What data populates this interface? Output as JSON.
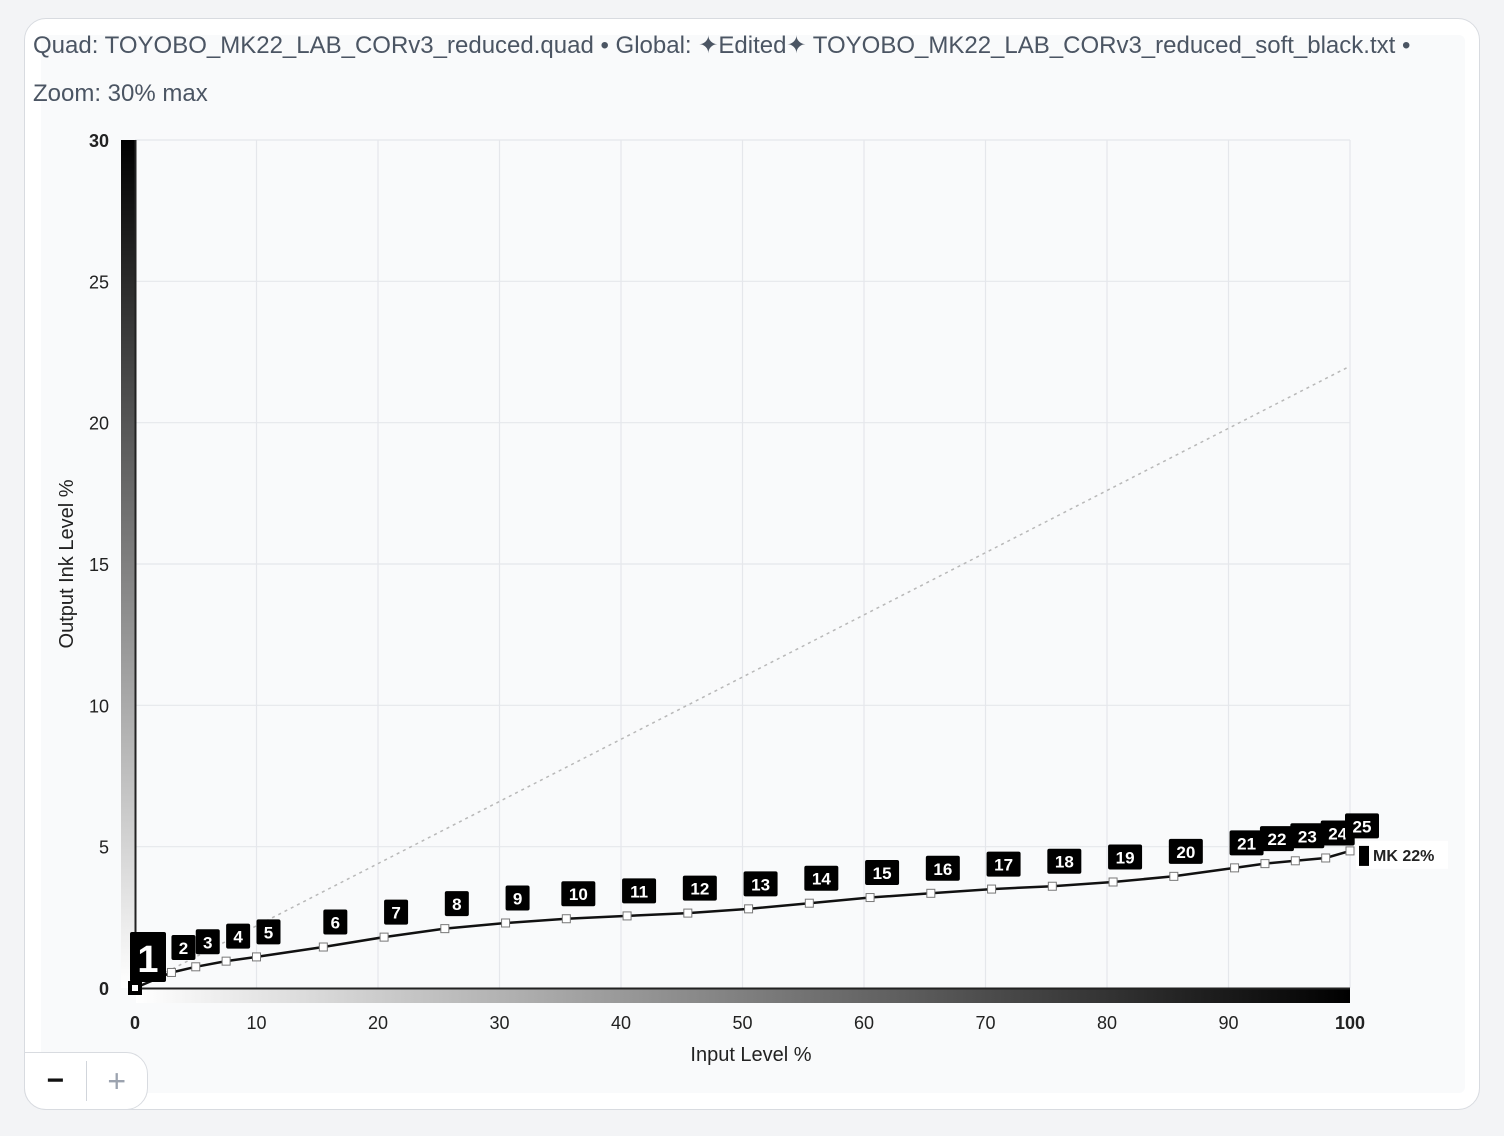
{
  "header": {
    "quad_label": "Quad:",
    "quad_file": "TOYOBO_MK22_LAB_CORv3_reduced.quad",
    "separator": "•",
    "global_label": "Global:",
    "global_file": "✦Edited✦ TOYOBO_MK22_LAB_CORv3_reduced_soft_black.txt",
    "zoom_text": "Zoom: 30% max"
  },
  "zoom_controls": {
    "minus": "−",
    "plus": "+"
  },
  "colors": {
    "curve": "#111111",
    "grid": "#e5e7eb",
    "reference_line": "#b8b8b8",
    "label_bg": "#000000",
    "label_text": "#ffffff",
    "axis": "#222222"
  },
  "chart_data": {
    "type": "line",
    "xlabel": "Input Level %",
    "ylabel": "Output Ink Level %",
    "xlim": [
      0,
      100
    ],
    "ylim": [
      0,
      30
    ],
    "xticks": [
      0,
      10,
      20,
      30,
      40,
      50,
      60,
      70,
      80,
      90,
      100
    ],
    "yticks": [
      0,
      5,
      10,
      15,
      20,
      25,
      30
    ],
    "grid": true,
    "reference_line": {
      "x": [
        0,
        100
      ],
      "y": [
        0,
        22
      ]
    },
    "series": [
      {
        "name": "MK 22%",
        "points": [
          {
            "id": "1",
            "x": 0,
            "y": 0
          },
          {
            "id": "2",
            "x": 3,
            "y": 0.55
          },
          {
            "id": "3",
            "x": 5,
            "y": 0.75
          },
          {
            "id": "4",
            "x": 7.5,
            "y": 0.95
          },
          {
            "id": "5",
            "x": 10,
            "y": 1.1
          },
          {
            "id": "6",
            "x": 15.5,
            "y": 1.45
          },
          {
            "id": "7",
            "x": 20.5,
            "y": 1.8
          },
          {
            "id": "8",
            "x": 25.5,
            "y": 2.1
          },
          {
            "id": "9",
            "x": 30.5,
            "y": 2.3
          },
          {
            "id": "10",
            "x": 35.5,
            "y": 2.45
          },
          {
            "id": "11",
            "x": 40.5,
            "y": 2.55
          },
          {
            "id": "12",
            "x": 45.5,
            "y": 2.65
          },
          {
            "id": "13",
            "x": 50.5,
            "y": 2.8
          },
          {
            "id": "14",
            "x": 55.5,
            "y": 3.0
          },
          {
            "id": "15",
            "x": 60.5,
            "y": 3.2
          },
          {
            "id": "16",
            "x": 65.5,
            "y": 3.35
          },
          {
            "id": "17",
            "x": 70.5,
            "y": 3.5
          },
          {
            "id": "18",
            "x": 75.5,
            "y": 3.6
          },
          {
            "id": "19",
            "x": 80.5,
            "y": 3.75
          },
          {
            "id": "20",
            "x": 85.5,
            "y": 3.95
          },
          {
            "id": "21",
            "x": 90.5,
            "y": 4.25
          },
          {
            "id": "22",
            "x": 93,
            "y": 4.4
          },
          {
            "id": "23",
            "x": 95.5,
            "y": 4.5
          },
          {
            "id": "24",
            "x": 98,
            "y": 4.6
          },
          {
            "id": "25",
            "x": 100,
            "y": 4.85
          }
        ]
      }
    ],
    "end_label": "MK 22%"
  }
}
